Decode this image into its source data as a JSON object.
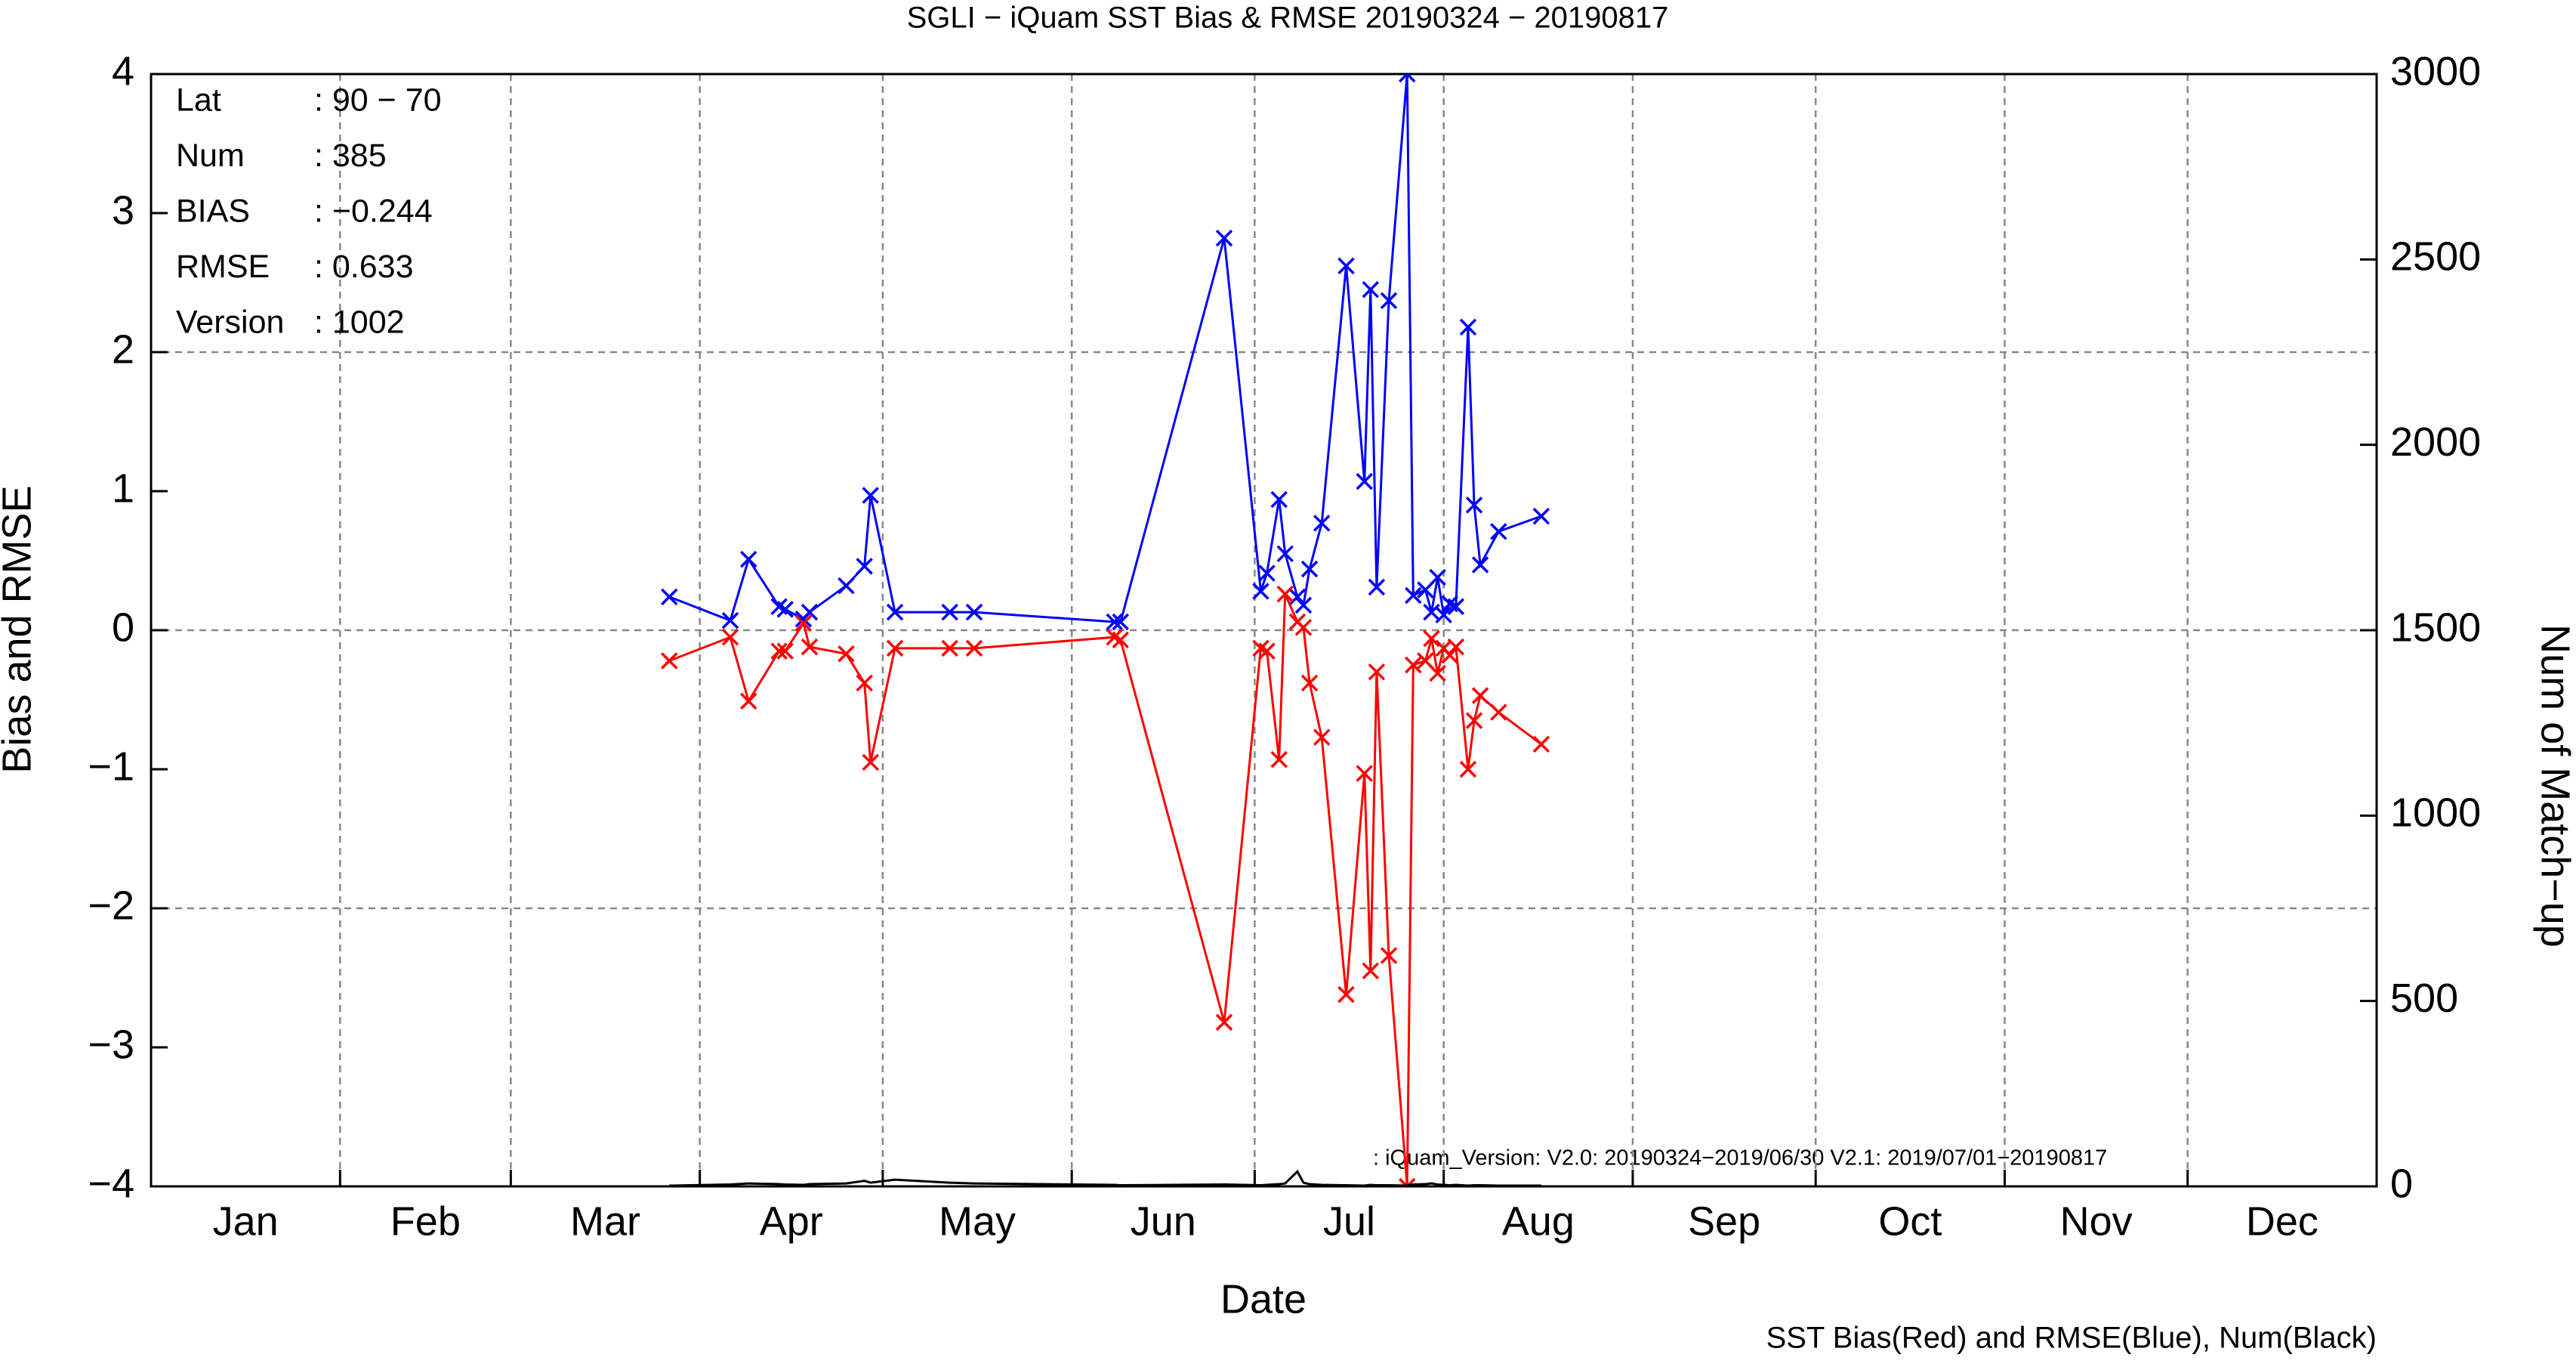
{
  "chart_data": {
    "type": "line",
    "title": "SGLI − iQuam  SST Bias & RMSE 20190324 − 20190817",
    "xlabel": "Date",
    "ylabel": "Bias and RMSE",
    "y2label": "Num of Match−up",
    "footer": "SST Bias(Red) and RMSE(Blue), Num(Black)",
    "annotation": ": iQuam_Version: V2.0: 20190324−2019/06/30 V2.1: 2019/07/01−20190817",
    "info_box": [
      {
        "label": "Lat",
        "value": ": 90 − 70"
      },
      {
        "label": "Num",
        "value": ": 385"
      },
      {
        "label": "BIAS",
        "value": ": −0.244"
      },
      {
        "label": "RMSE",
        "value": ": 0.633"
      },
      {
        "label": "Version",
        "value": ": 1002"
      }
    ],
    "xlim": [
      0,
      365
    ],
    "xticks": [
      {
        "value": 0,
        "label": "Jan"
      },
      {
        "value": 31,
        "label": "Feb"
      },
      {
        "value": 59,
        "label": "Mar"
      },
      {
        "value": 90,
        "label": "Apr"
      },
      {
        "value": 120,
        "label": "May"
      },
      {
        "value": 151,
        "label": "Jun"
      },
      {
        "value": 181,
        "label": "Jul"
      },
      {
        "value": 212,
        "label": "Aug"
      },
      {
        "value": 243,
        "label": "Sep"
      },
      {
        "value": 273,
        "label": "Oct"
      },
      {
        "value": 304,
        "label": "Nov"
      },
      {
        "value": 334,
        "label": "Dec"
      }
    ],
    "ylim": [
      -4,
      4
    ],
    "yticks": [
      {
        "value": -4,
        "label": "−4"
      },
      {
        "value": -3,
        "label": "−3"
      },
      {
        "value": -2,
        "label": "−2"
      },
      {
        "value": -1,
        "label": "−1"
      },
      0,
      1,
      2,
      3,
      4
    ],
    "ygrid": [
      -2,
      0,
      2
    ],
    "y2lim": [
      0,
      3000
    ],
    "y2ticks": [
      0,
      500,
      1000,
      1500,
      2000,
      2500,
      3000
    ],
    "x": [
      85,
      95,
      98,
      103,
      104,
      107,
      108,
      114,
      117,
      118,
      122,
      131,
      135,
      158,
      159,
      176,
      182,
      183,
      185,
      186,
      188,
      189,
      190,
      192,
      196,
      199,
      200,
      201,
      203,
      206,
      207,
      209,
      210,
      211,
      212,
      213,
      214,
      216,
      217,
      218,
      221,
      228
    ],
    "series": [
      {
        "color": "#0000ff",
        "marker": true,
        "values": [
          0.24,
          0.07,
          0.51,
          0.17,
          0.15,
          0.08,
          0.13,
          0.32,
          0.46,
          0.97,
          0.13,
          0.13,
          0.13,
          0.06,
          0.06,
          2.82,
          0.28,
          0.41,
          0.94,
          0.55,
          0.24,
          0.18,
          0.44,
          0.77,
          2.62,
          1.07,
          2.45,
          0.31,
          2.37,
          4.0,
          0.25,
          0.29,
          0.13,
          0.38,
          0.11,
          0.19,
          0.17,
          2.18,
          0.9,
          0.47,
          0.71,
          0.82
        ]
      },
      {
        "color": "#ff0000",
        "marker": true,
        "values": [
          -0.22,
          -0.05,
          -0.51,
          -0.15,
          -0.15,
          0.05,
          -0.12,
          -0.17,
          -0.38,
          -0.95,
          -0.13,
          -0.13,
          -0.13,
          -0.05,
          -0.07,
          -2.82,
          -0.13,
          -0.15,
          -0.93,
          0.26,
          0.06,
          0.02,
          -0.38,
          -0.77,
          -2.62,
          -1.03,
          -2.45,
          -0.3,
          -2.34,
          -4.0,
          -0.25,
          -0.22,
          -0.06,
          -0.31,
          -0.13,
          -0.18,
          -0.12,
          -1.0,
          -0.65,
          -0.47,
          -0.59,
          -0.82
        ]
      },
      {
        "color": "#000000",
        "marker": false,
        "axis": "y2",
        "values": [
          2,
          5,
          8,
          6,
          5,
          4,
          6,
          8,
          15,
          10,
          18,
          10,
          8,
          4,
          3,
          5,
          3,
          4,
          6,
          8,
          40,
          10,
          6,
          4,
          3,
          2,
          4,
          3,
          3,
          2,
          5,
          6,
          8,
          5,
          4,
          3,
          4,
          2,
          3,
          3,
          2,
          2
        ]
      }
    ]
  }
}
